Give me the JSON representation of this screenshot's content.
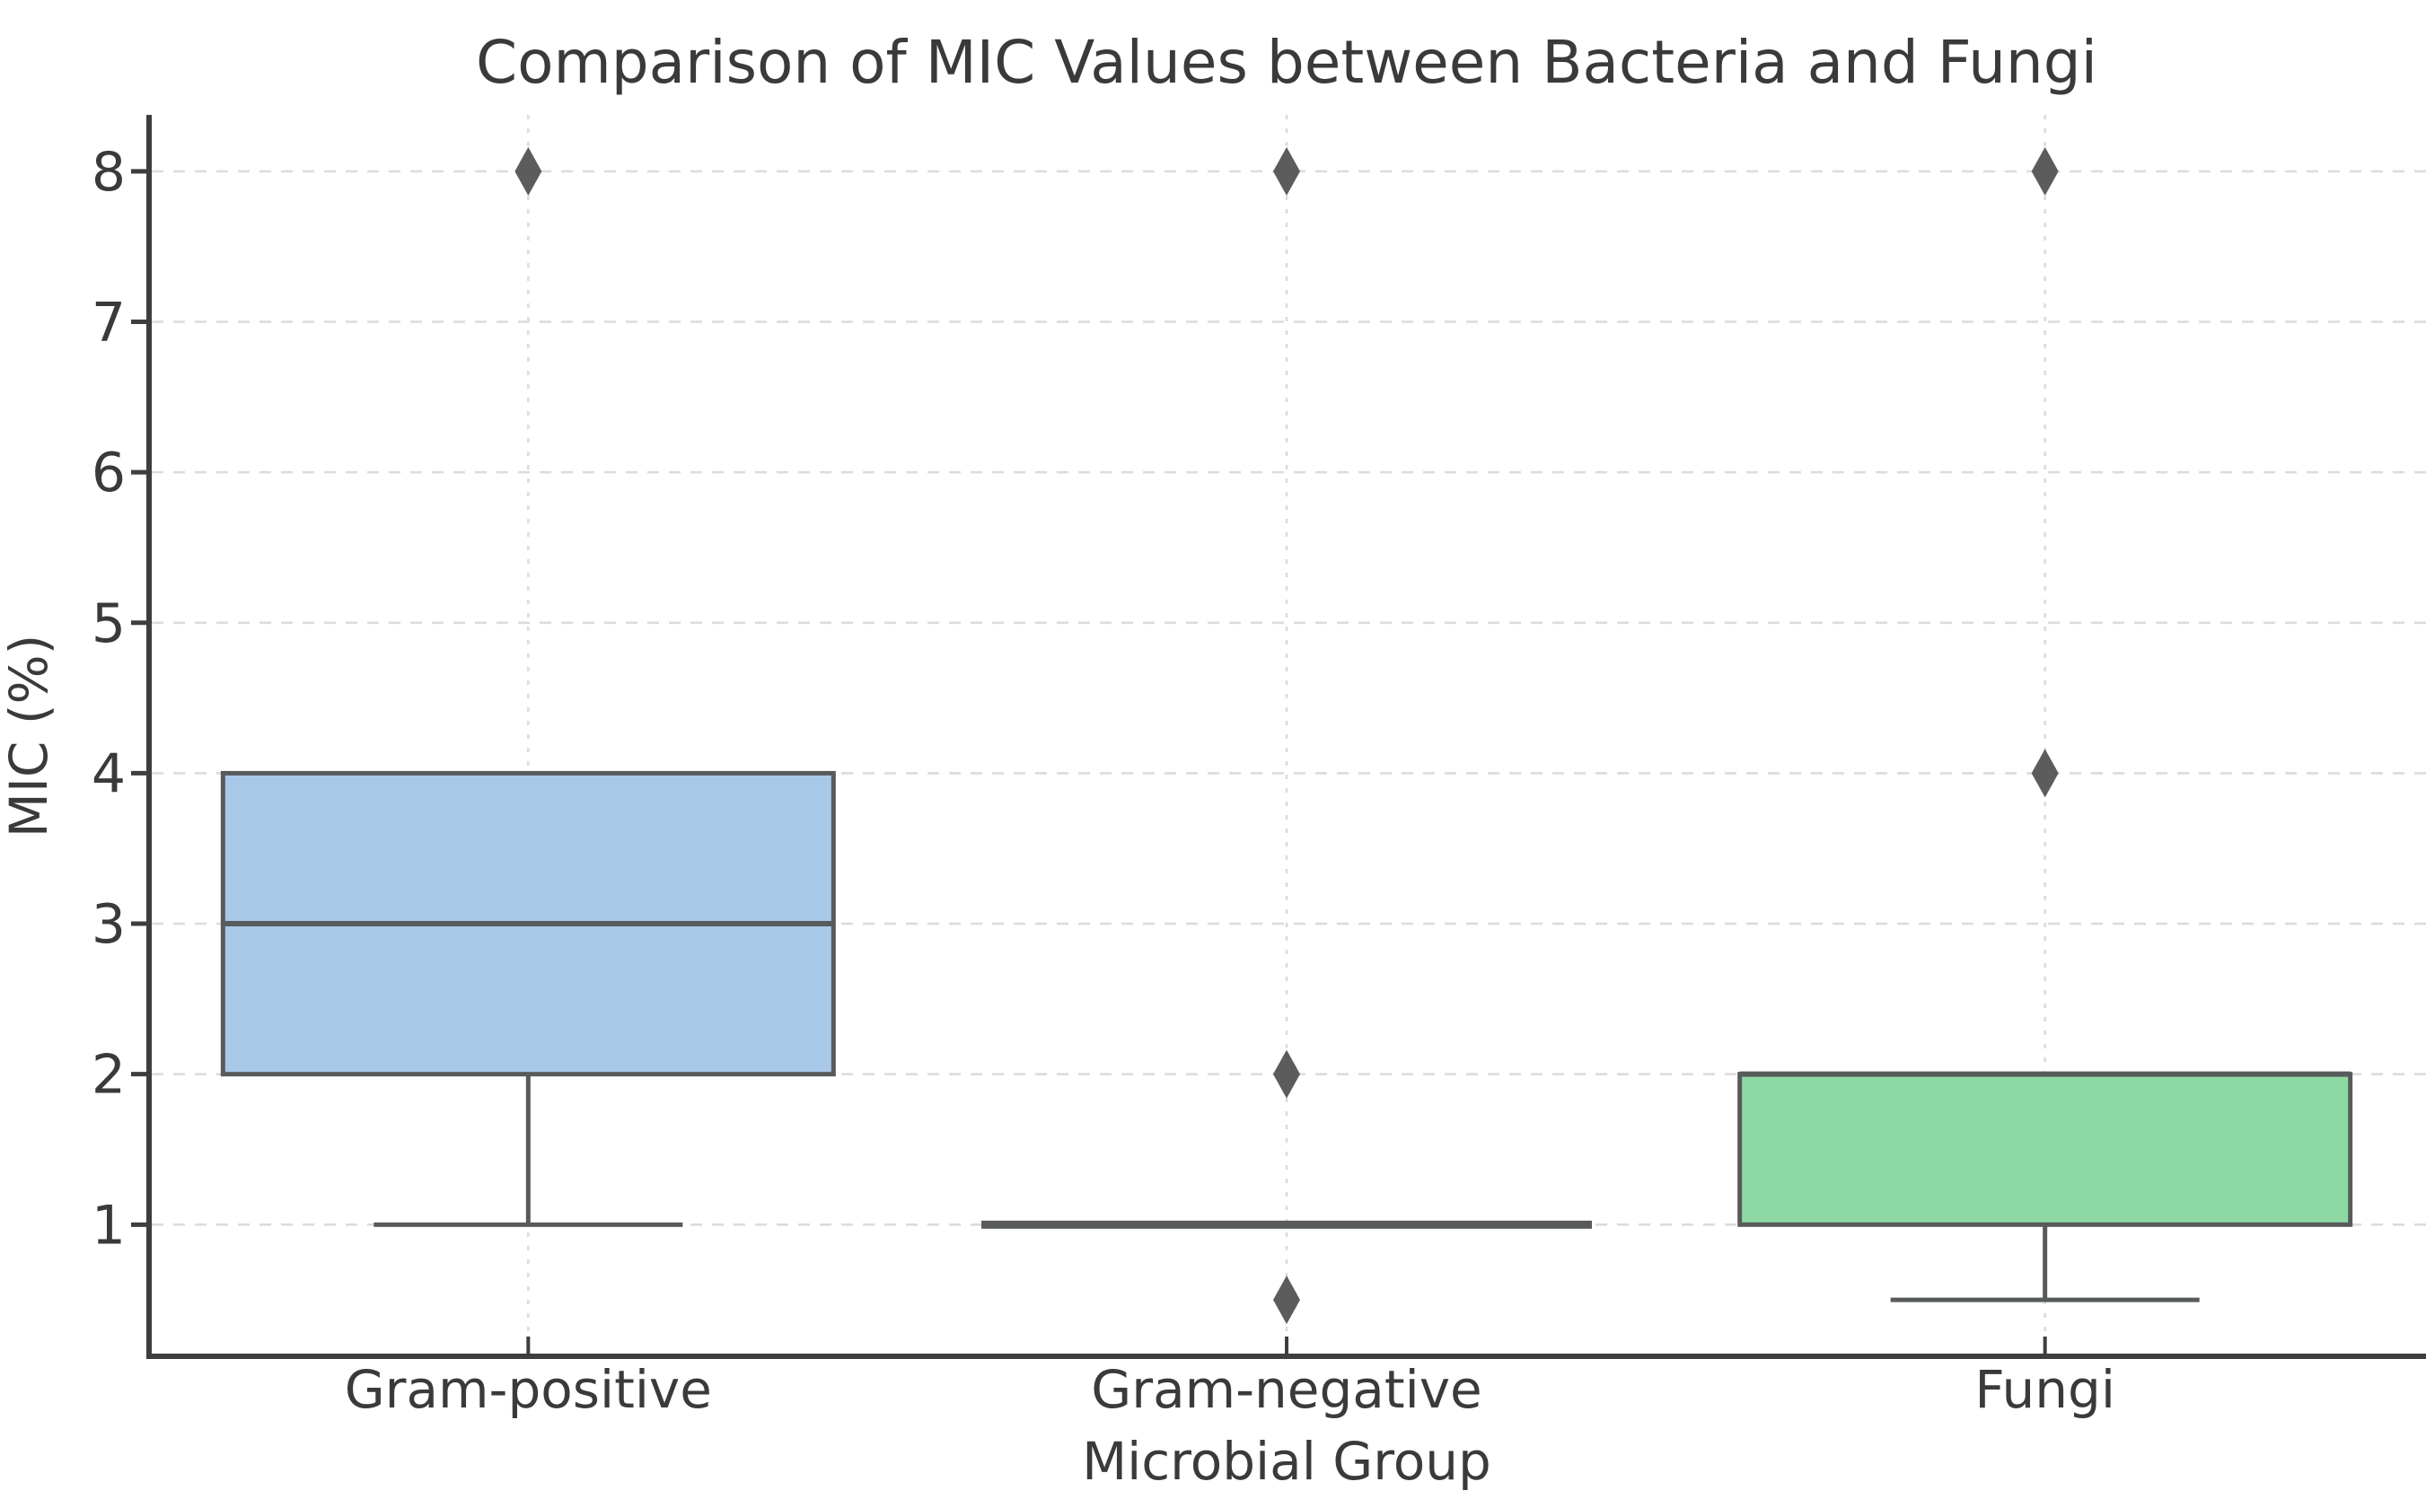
{
  "figure": {
    "kind": "boxplot-figure",
    "background": "#ffffff"
  },
  "chart_data": {
    "type": "box",
    "title": "Comparison of MIC Values between Bacteria and Fungi",
    "xlabel": "Microbial Group",
    "ylabel": "MIC (%)",
    "categories": [
      "Gram-positive",
      "Gram-negative",
      "Fungi"
    ],
    "yticks": [
      1,
      2,
      3,
      4,
      5,
      6,
      7,
      8
    ],
    "ylim": [
      0.125,
      8.375
    ],
    "grid": true,
    "grid_style": "dashed",
    "legend": "none",
    "series": [
      {
        "name": "Gram-positive",
        "q1": 2,
        "median": 3,
        "q3": 4,
        "whisker_low": 1,
        "whisker_high": 4,
        "outliers": [
          8
        ],
        "fill": "#a8c8e8"
      },
      {
        "name": "Gram-negative",
        "q1": 1,
        "median": 1,
        "q3": 1,
        "whisker_low": 1,
        "whisker_high": 1,
        "outliers": [
          0.5,
          2,
          8
        ],
        "fill": "#a8c8e8"
      },
      {
        "name": "Fungi",
        "q1": 1,
        "median": 2,
        "q3": 2,
        "whisker_low": 0.5,
        "whisker_high": 2,
        "outliers": [
          4,
          8
        ],
        "fill": "#8ed9a3"
      }
    ],
    "colors": {
      "box_edge": "#585b5b",
      "median_line": "#585b5b",
      "whisker": "#585b5b",
      "outlier_marker": "#5c5c5c",
      "gridline": "#dcdcdc",
      "spine": "#3e3e3e",
      "text": "#3a3a3a",
      "blue_box": "#a8c8e8",
      "green_box": "#8ed9a3"
    }
  }
}
